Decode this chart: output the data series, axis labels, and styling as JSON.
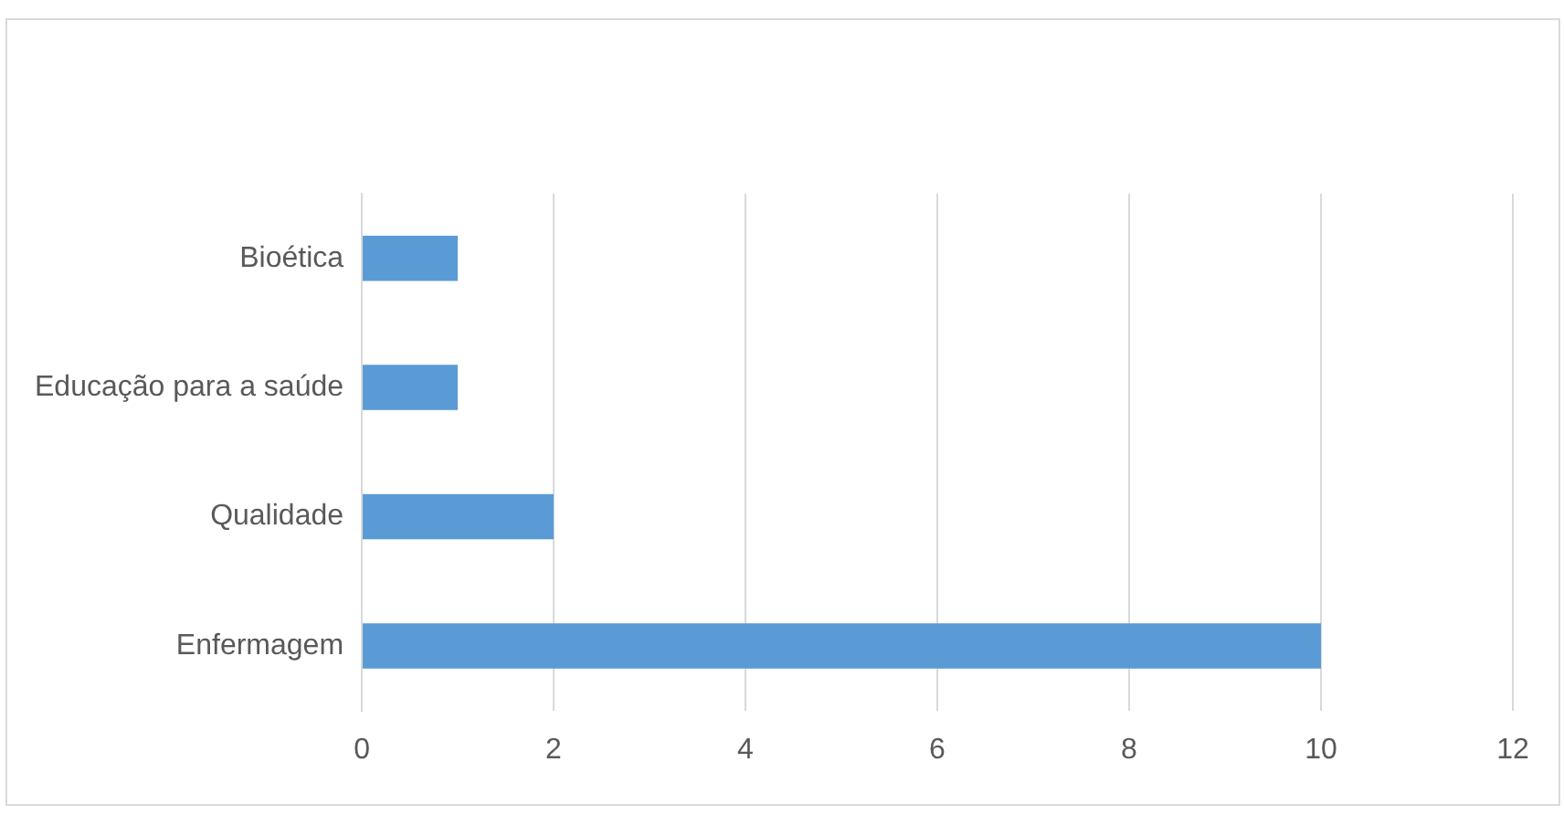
{
  "chart_data": {
    "type": "bar",
    "orientation": "horizontal",
    "categories": [
      "Bioética",
      "Educação para a saúde",
      "Qualidade",
      "Enfermagem"
    ],
    "values": [
      1,
      1,
      2,
      10
    ],
    "color": "#5b9bd5",
    "xlim": [
      0,
      12
    ],
    "xticks": [
      0,
      2,
      4,
      6,
      8,
      10,
      12
    ],
    "grid": "x",
    "legend": false
  }
}
